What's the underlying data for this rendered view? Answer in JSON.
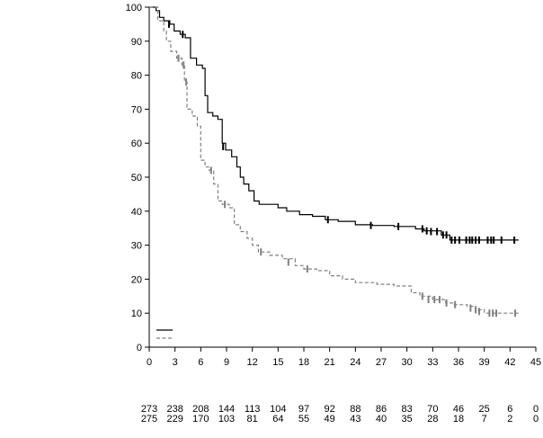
{
  "chart_data": {
    "type": "line",
    "title": "",
    "xlabel": "",
    "ylabel": "",
    "xlim": [
      0,
      45
    ],
    "ylim": [
      0,
      100
    ],
    "x_ticks": [
      0,
      3,
      6,
      9,
      12,
      15,
      18,
      21,
      24,
      27,
      30,
      33,
      36,
      39,
      42,
      45
    ],
    "y_ticks": [
      0,
      10,
      20,
      30,
      40,
      50,
      60,
      70,
      80,
      90,
      100
    ],
    "grid": false,
    "legend_position": "bottom-left",
    "series": [
      {
        "style": "solid",
        "color": "#000000",
        "censor_color": "#000000",
        "steps": [
          [
            0,
            100
          ],
          [
            0.8,
            99
          ],
          [
            1.2,
            97
          ],
          [
            1.7,
            96
          ],
          [
            2.4,
            95
          ],
          [
            2.9,
            93
          ],
          [
            3.6,
            92
          ],
          [
            4.2,
            91
          ],
          [
            4.8,
            85
          ],
          [
            5.5,
            83
          ],
          [
            6.2,
            82
          ],
          [
            6.5,
            74
          ],
          [
            6.8,
            69
          ],
          [
            7.4,
            68
          ],
          [
            8.0,
            67
          ],
          [
            8.5,
            60
          ],
          [
            8.9,
            58
          ],
          [
            9.6,
            56
          ],
          [
            10.2,
            53
          ],
          [
            10.6,
            50
          ],
          [
            11.0,
            48
          ],
          [
            11.6,
            46
          ],
          [
            12.2,
            43
          ],
          [
            12.8,
            42
          ],
          [
            14.0,
            42
          ],
          [
            15.0,
            41
          ],
          [
            16.0,
            40
          ],
          [
            17.5,
            39
          ],
          [
            19.0,
            38.5
          ],
          [
            20.5,
            37.5
          ],
          [
            22.0,
            37
          ],
          [
            24.0,
            36
          ],
          [
            26.0,
            35.8
          ],
          [
            28.5,
            35.5
          ],
          [
            31.0,
            34.8
          ],
          [
            32.0,
            34.2
          ],
          [
            34.0,
            33
          ],
          [
            35.0,
            31.5
          ],
          [
            43.0,
            31.5
          ]
        ],
        "censored": [
          [
            2.3,
            95
          ],
          [
            3.9,
            92
          ],
          [
            8.6,
            59
          ],
          [
            20.8,
            37.5
          ],
          [
            25.8,
            35.8
          ],
          [
            29.0,
            35.5
          ],
          [
            31.8,
            34.8
          ],
          [
            32.3,
            34.2
          ],
          [
            32.8,
            34
          ],
          [
            33.5,
            34
          ],
          [
            34.2,
            33
          ],
          [
            34.6,
            33
          ],
          [
            35.2,
            31.5
          ],
          [
            35.6,
            31.5
          ],
          [
            36.1,
            31.5
          ],
          [
            36.9,
            31.5
          ],
          [
            37.3,
            31.5
          ],
          [
            37.6,
            31.5
          ],
          [
            38.0,
            31.5
          ],
          [
            38.4,
            31.5
          ],
          [
            39.4,
            31.5
          ],
          [
            39.8,
            31.5
          ],
          [
            40.1,
            31.5
          ],
          [
            41.0,
            31.5
          ],
          [
            42.5,
            31.5
          ]
        ],
        "at_risk": [
          273,
          238,
          208,
          144,
          113,
          104,
          97,
          92,
          88,
          86,
          83,
          70,
          46,
          25,
          6,
          0
        ]
      },
      {
        "style": "dashed",
        "color": "#808080",
        "censor_color": "#808080",
        "steps": [
          [
            0,
            100
          ],
          [
            1.0,
            96
          ],
          [
            1.7,
            93
          ],
          [
            2.0,
            90
          ],
          [
            2.5,
            87
          ],
          [
            3.2,
            85
          ],
          [
            3.8,
            83
          ],
          [
            4.1,
            78
          ],
          [
            4.4,
            70
          ],
          [
            5.0,
            68
          ],
          [
            5.6,
            65
          ],
          [
            6.0,
            55
          ],
          [
            6.5,
            53
          ],
          [
            7.0,
            52
          ],
          [
            7.5,
            48
          ],
          [
            8.0,
            43
          ],
          [
            8.5,
            42
          ],
          [
            9.3,
            41
          ],
          [
            9.9,
            36
          ],
          [
            10.6,
            34
          ],
          [
            11.4,
            32
          ],
          [
            12.0,
            30
          ],
          [
            12.7,
            28
          ],
          [
            14.0,
            27
          ],
          [
            15.5,
            26
          ],
          [
            17.0,
            24
          ],
          [
            18.0,
            23
          ],
          [
            19.5,
            22.5
          ],
          [
            21.0,
            21
          ],
          [
            22.5,
            20
          ],
          [
            24.0,
            19
          ],
          [
            26.5,
            18.5
          ],
          [
            28.5,
            18
          ],
          [
            30.5,
            16
          ],
          [
            31.5,
            15
          ],
          [
            33.0,
            14
          ],
          [
            34.5,
            13
          ],
          [
            35.5,
            12.5
          ],
          [
            37.0,
            12
          ],
          [
            38.0,
            11
          ],
          [
            39.0,
            10
          ],
          [
            43.0,
            10
          ]
        ],
        "censored": [
          [
            3.4,
            85
          ],
          [
            4.0,
            83
          ],
          [
            4.3,
            78
          ],
          [
            7.2,
            52
          ],
          [
            8.8,
            42
          ],
          [
            13.0,
            28
          ],
          [
            16.2,
            25
          ],
          [
            18.4,
            23
          ],
          [
            31.8,
            15
          ],
          [
            32.5,
            14
          ],
          [
            33.2,
            14
          ],
          [
            33.8,
            14
          ],
          [
            34.6,
            13
          ],
          [
            35.6,
            12.5
          ],
          [
            37.4,
            11.5
          ],
          [
            38.0,
            11
          ],
          [
            38.4,
            10.5
          ],
          [
            39.6,
            10
          ],
          [
            40.0,
            10
          ],
          [
            40.4,
            10
          ],
          [
            42.6,
            10
          ]
        ],
        "at_risk": [
          275,
          229,
          170,
          103,
          81,
          64,
          55,
          49,
          43,
          40,
          35,
          28,
          18,
          7,
          2,
          0
        ]
      }
    ]
  }
}
